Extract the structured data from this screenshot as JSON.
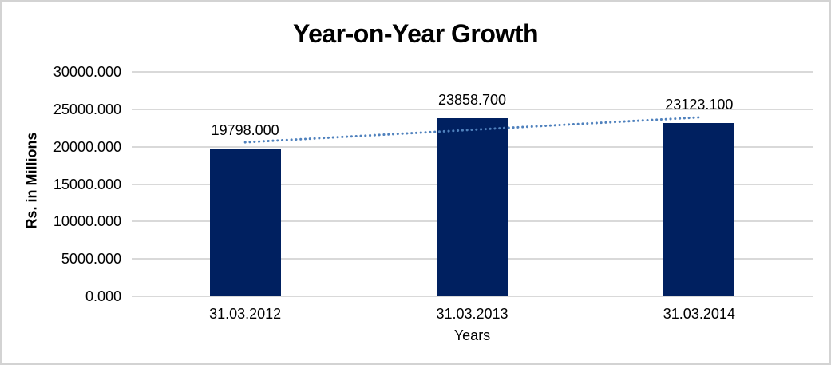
{
  "window": {
    "background_color": "#ffffff",
    "border_color": "#d3d3d3"
  },
  "chart_data": {
    "type": "bar",
    "title": "Year-on-Year Growth",
    "categories": [
      "31.03.2012",
      "31.03.2013",
      "31.03.2014"
    ],
    "values": [
      19798.0,
      23858.7,
      23123.1
    ],
    "data_labels": [
      "19798.000",
      "23858.700",
      "23123.100"
    ],
    "xlabel": "Years",
    "ylabel": "Rs. in Millions",
    "ylim": [
      0,
      30000
    ],
    "y_tick_step": 5000,
    "y_tick_labels": [
      "0.000",
      "5000.000",
      "10000.000",
      "15000.000",
      "20000.000",
      "25000.000",
      "30000.000"
    ],
    "grid": true,
    "legend_position": "none",
    "bar_color": "#002060",
    "gridline_color": "#d9d9d9",
    "text_color": "#000000",
    "trendline": {
      "type": "linear",
      "style": "dotted",
      "color": "#4f81bd",
      "applies_to": "values"
    }
  }
}
